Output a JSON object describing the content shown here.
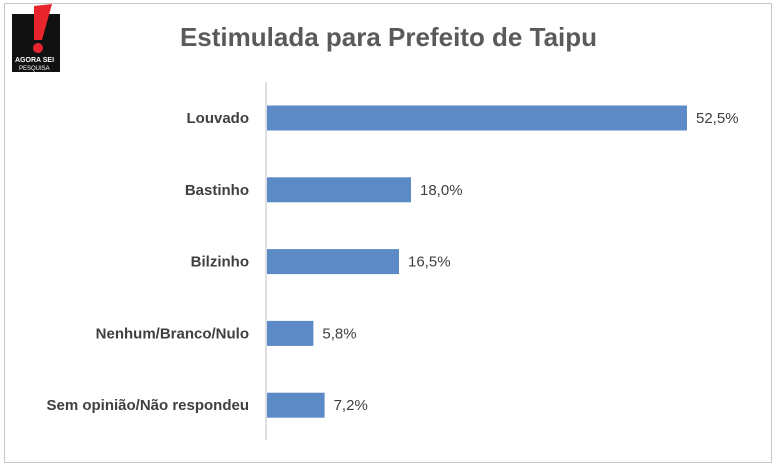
{
  "logo": {
    "brand_line1": "AGORA SEI",
    "brand_line2": "PESQUISA",
    "colors": {
      "mark": "#e8242d",
      "ground": "#111111"
    }
  },
  "chart_data": {
    "type": "bar",
    "orientation": "horizontal",
    "title": "Estimulada para Prefeito de Taipu",
    "categories": [
      "Louvado",
      "Bastinho",
      "Bilzinho",
      "Nenhum/Branco/Nulo",
      "Sem opinião/Não respondeu"
    ],
    "values": [
      52.5,
      18.0,
      16.5,
      5.8,
      7.2
    ],
    "value_labels": [
      "52,5%",
      "18,0%",
      "16,5%",
      "5,8%",
      "7,2%"
    ],
    "unit": "%",
    "bar_color": "#5b8ac6",
    "xlim": [
      0,
      53
    ],
    "grid": false,
    "legend": "none"
  }
}
